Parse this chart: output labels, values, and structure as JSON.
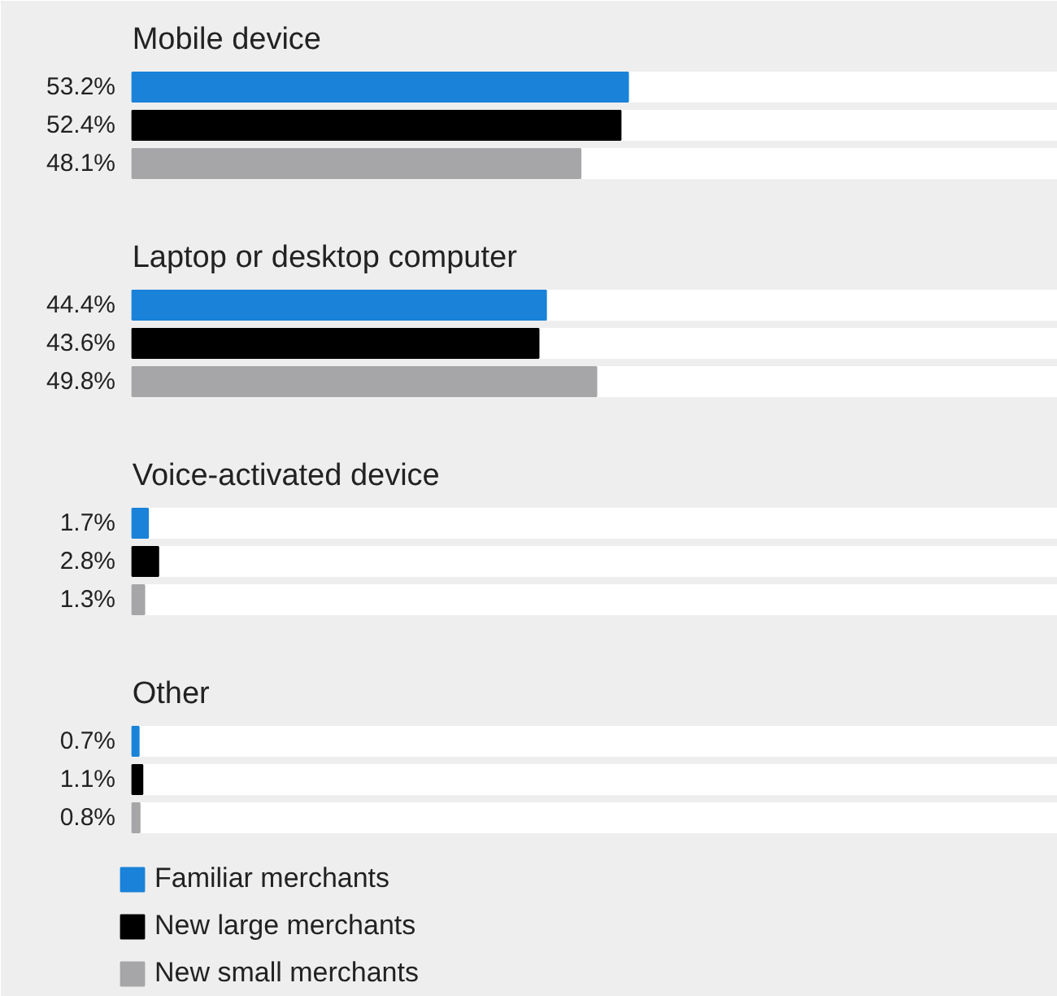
{
  "chart_data": {
    "type": "bar",
    "orientation": "horizontal",
    "categories": [
      "Mobile device",
      "Laptop or desktop computer",
      "Voice-activated device",
      "Other"
    ],
    "series": [
      {
        "name": "Familiar merchants",
        "color": "#1a82d9",
        "values": [
          53.2,
          44.4,
          1.7,
          0.7
        ],
        "value_labels": [
          "53.2%",
          "44.4%",
          "1.7%",
          "0.7%"
        ]
      },
      {
        "name": "New large merchants",
        "color": "#000000",
        "values": [
          52.4,
          43.6,
          2.8,
          1.1
        ],
        "value_labels": [
          "52.4%",
          "43.6%",
          "2.8%",
          "1.1%"
        ]
      },
      {
        "name": "New small merchants",
        "color": "#a6a6a8",
        "values": [
          48.1,
          49.8,
          1.3,
          0.8
        ],
        "value_labels": [
          "48.1%",
          "49.8%",
          "1.3%",
          "0.8%"
        ]
      }
    ],
    "legend": "bottom left",
    "grid": false
  }
}
